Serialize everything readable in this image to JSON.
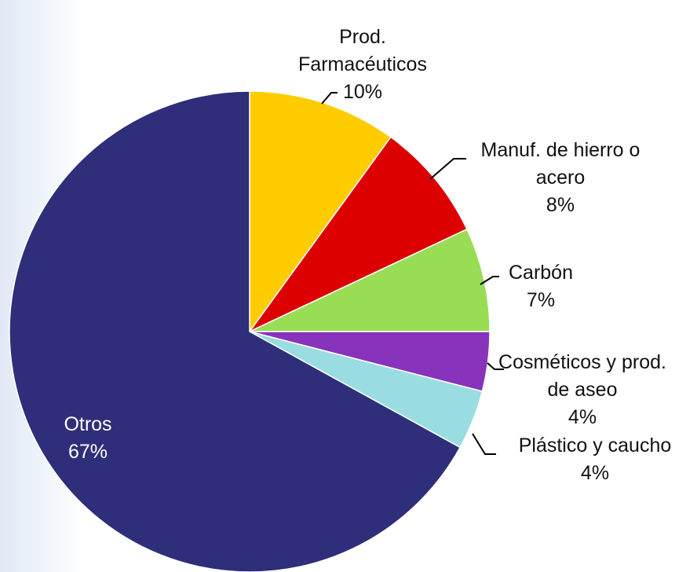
{
  "chart_data": {
    "type": "pie",
    "categories": [
      "Prod. Farmacéuticos",
      "Manuf. de hierro o acero",
      "Carbón",
      "Cosméticos y prod. de aseo",
      "Plástico y caucho",
      "Otros"
    ],
    "values": [
      10,
      8,
      7,
      4,
      4,
      67
    ],
    "value_labels": [
      "10%",
      "8%",
      "7%",
      "4%",
      "4%",
      "67%"
    ],
    "colors": [
      "#FFCC00",
      "#DD0000",
      "#99DD55",
      "#8833BB",
      "#99DDE2",
      "#2E2E7A"
    ]
  }
}
